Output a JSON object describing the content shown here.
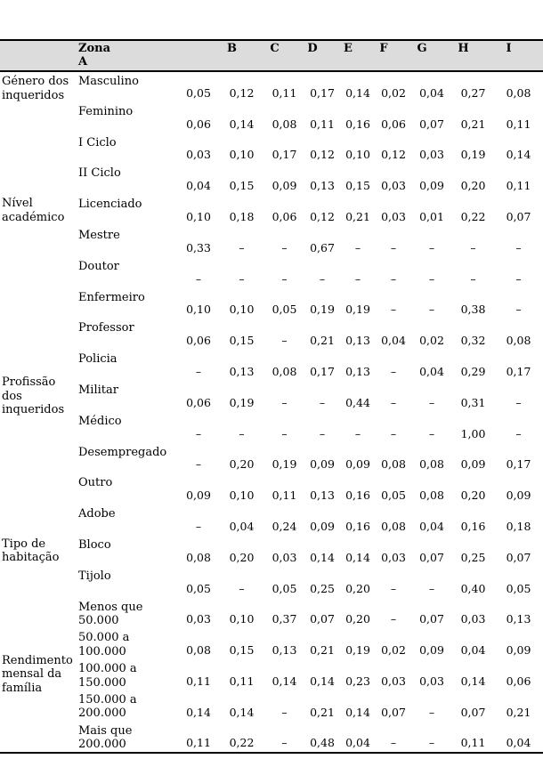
{
  "colors": {
    "header_bg": "#DCDCDC",
    "rule": "#000000",
    "text": "#000000"
  },
  "table": {
    "header": {
      "zona": "Zona\nA",
      "columns": [
        "B",
        "C",
        "D",
        "E",
        "F",
        "G",
        "H",
        "I"
      ]
    },
    "groups": [
      {
        "label": "Género dos\ninqueridos",
        "rows": [
          {
            "label": "Masculino",
            "values": [
              "0,05",
              "0,12",
              "0,11",
              "0,17",
              "0,14",
              "0,02",
              "0,04",
              "0,27",
              "0,08"
            ]
          },
          {
            "label": "Feminino",
            "values": [
              "0,06",
              "0,14",
              "0,08",
              "0,11",
              "0,16",
              "0,06",
              "0,07",
              "0,21",
              "0,11"
            ]
          }
        ]
      },
      {
        "label": "Nível\nacadémico",
        "rows": [
          {
            "label": "I Ciclo",
            "values": [
              "0,03",
              "0,10",
              "0,17",
              "0,12",
              "0,10",
              "0,12",
              "0,03",
              "0,19",
              "0,14"
            ]
          },
          {
            "label": "II Ciclo",
            "values": [
              "0,04",
              "0,15",
              "0,09",
              "0,13",
              "0,15",
              "0,03",
              "0,09",
              "0,20",
              "0,11"
            ]
          },
          {
            "label": "Licenciado",
            "values": [
              "0,10",
              "0,18",
              "0,06",
              "0,12",
              "0,21",
              "0,03",
              "0,01",
              "0,22",
              "0,07"
            ]
          },
          {
            "label": "Mestre",
            "values": [
              "0,33",
              "–",
              "–",
              "0,67",
              "–",
              "–",
              "–",
              "–",
              "–"
            ]
          },
          {
            "label": "Doutor",
            "values": [
              "–",
              "–",
              "–",
              "–",
              "–",
              "–",
              "–",
              "–",
              "–"
            ]
          }
        ]
      },
      {
        "label": "Profissão\ndos\ninqueridos",
        "rows": [
          {
            "label": "Enfermeiro",
            "values": [
              "0,10",
              "0,10",
              "0,05",
              "0,19",
              "0,19",
              "–",
              "–",
              "0,38",
              "–"
            ]
          },
          {
            "label": "Professor",
            "values": [
              "0,06",
              "0,15",
              "–",
              "0,21",
              "0,13",
              "0,04",
              "0,02",
              "0,32",
              "0,08"
            ]
          },
          {
            "label": "Policia",
            "values": [
              "–",
              "0,13",
              "0,08",
              "0,17",
              "0,13",
              "–",
              "0,04",
              "0,29",
              "0,17"
            ]
          },
          {
            "label": "Militar",
            "values": [
              "0,06",
              "0,19",
              "–",
              "–",
              "0,44",
              "–",
              "–",
              "0,31",
              "–"
            ]
          },
          {
            "label": "Médico",
            "values": [
              "–",
              "–",
              "–",
              "–",
              "–",
              "–",
              "–",
              "1,00",
              "–"
            ]
          },
          {
            "label": "Desempregado",
            "values": [
              "–",
              "0,20",
              "0,19",
              "0,09",
              "0,09",
              "0,08",
              "0,08",
              "0,09",
              "0,17"
            ]
          },
          {
            "label": "Outro",
            "values": [
              "0,09",
              "0,10",
              "0,11",
              "0,13",
              "0,16",
              "0,05",
              "0,08",
              "0,20",
              "0,09"
            ]
          }
        ]
      },
      {
        "label": "Tipo de\nhabitação",
        "rows": [
          {
            "label": "Adobe",
            "values": [
              "–",
              "0,04",
              "0,24",
              "0,09",
              "0,16",
              "0,08",
              "0,04",
              "0,16",
              "0,18"
            ]
          },
          {
            "label": "Bloco",
            "values": [
              "0,08",
              "0,20",
              "0,03",
              "0,14",
              "0,14",
              "0,03",
              "0,07",
              "0,25",
              "0,07"
            ]
          },
          {
            "label": "Tijolo",
            "values": [
              "0,05",
              "–",
              "0,05",
              "0,25",
              "0,20",
              "–",
              "–",
              "0,40",
              "0,05"
            ]
          }
        ]
      },
      {
        "label": "Rendimento\nmensal da\nfamília",
        "rows": [
          {
            "label": "Menos que\n50.000",
            "values": [
              "0,03",
              "0,10",
              "0,37",
              "0,07",
              "0,20",
              "–",
              "0,07",
              "0,03",
              "0,13"
            ]
          },
          {
            "label": "50.000 a\n100.000",
            "values": [
              "0,08",
              "0,15",
              "0,13",
              "0,21",
              "0,19",
              "0,02",
              "0,09",
              "0,04",
              "0,09"
            ]
          },
          {
            "label": "100.000 a\n150.000",
            "values": [
              "0,11",
              "0,11",
              "0,14",
              "0,14",
              "0,23",
              "0,03",
              "0,03",
              "0,14",
              "0,06"
            ]
          },
          {
            "label": "150.000 a\n200.000",
            "values": [
              "0,14",
              "0,14",
              "–",
              "0,21",
              "0,14",
              "0,07",
              "–",
              "0,07",
              "0,21"
            ]
          },
          {
            "label": "Mais que\n200.000",
            "values": [
              "0,11",
              "0,22",
              "–",
              "0,48",
              "0,04",
              "–",
              "–",
              "0,11",
              "0,04"
            ]
          }
        ]
      }
    ]
  }
}
